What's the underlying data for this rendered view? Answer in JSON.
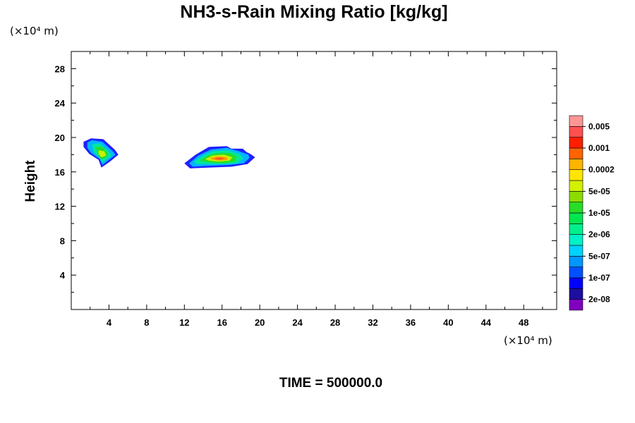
{
  "chart_data": {
    "type": "heatmap",
    "title": "NH3-s-Rain Mixing Ratio [kg/kg]",
    "ylabel": "Height",
    "x_unit": "(×10⁴ m)",
    "y_unit": "(×10⁴ m)",
    "xlim": [
      0,
      51.5
    ],
    "ylim": [
      0,
      30
    ],
    "x_ticks": [
      4,
      8,
      12,
      16,
      20,
      24,
      28,
      32,
      36,
      40,
      44,
      48
    ],
    "y_ticks": [
      4,
      8,
      12,
      16,
      20,
      24,
      28
    ],
    "colorbar": {
      "colors": [
        "#7f00bf",
        "#1c0fa0",
        "#0000ff",
        "#0050ff",
        "#0096ff",
        "#00d2ff",
        "#00f0c8",
        "#00f08c",
        "#00e650",
        "#28dc28",
        "#8cdc00",
        "#d2f000",
        "#ffe600",
        "#ffb400",
        "#ff6400",
        "#ff1e00",
        "#ff5050",
        "#ff9696"
      ],
      "labels": [
        "2e-08",
        "1e-07",
        "5e-07",
        "2e-06",
        "1e-05",
        "5e-05",
        "0.0002",
        "0.001",
        "0.005"
      ]
    },
    "features": [
      {
        "levels": [
          [
            [
              1.3,
              19.5
            ],
            [
              2.1,
              19.9
            ],
            [
              3.4,
              19.8
            ],
            [
              4.6,
              18.6
            ],
            [
              5.0,
              18.0
            ],
            [
              4.1,
              17.2
            ],
            [
              3.2,
              16.5
            ],
            [
              2.9,
              17.4
            ],
            [
              1.9,
              18.1
            ],
            [
              1.3,
              18.9
            ]
          ],
          [
            [
              1.7,
              19.4
            ],
            [
              2.2,
              19.7
            ],
            [
              3.3,
              19.5
            ],
            [
              4.4,
              18.4
            ],
            [
              4.7,
              18.0
            ],
            [
              3.9,
              17.3
            ],
            [
              3.3,
              16.8
            ],
            [
              3.0,
              17.5
            ],
            [
              2.1,
              18.2
            ],
            [
              1.7,
              18.8
            ]
          ],
          [
            [
              2.2,
              19.2
            ],
            [
              3.0,
              19.3
            ],
            [
              3.9,
              18.5
            ],
            [
              4.3,
              17.9
            ],
            [
              3.7,
              17.4
            ],
            [
              3.3,
              17.1
            ],
            [
              3.0,
              17.7
            ],
            [
              2.4,
              18.3
            ]
          ],
          [
            [
              2.6,
              18.9
            ],
            [
              3.3,
              18.9
            ],
            [
              3.9,
              18.1
            ],
            [
              3.6,
              17.6
            ],
            [
              3.1,
              17.5
            ],
            [
              2.8,
              18.2
            ]
          ],
          [
            [
              2.9,
              18.5
            ],
            [
              3.5,
              18.4
            ],
            [
              3.7,
              17.9
            ],
            [
              3.2,
              17.7
            ],
            [
              2.9,
              18.1
            ]
          ]
        ]
      },
      {
        "levels": [
          [
            [
              12.0,
              17.0
            ],
            [
              13.2,
              18.0
            ],
            [
              14.6,
              18.9
            ],
            [
              16.5,
              19.0
            ],
            [
              17.0,
              18.7
            ],
            [
              18.2,
              18.7
            ],
            [
              18.6,
              18.3
            ],
            [
              19.0,
              18.1
            ],
            [
              19.5,
              17.7
            ],
            [
              18.7,
              16.9
            ],
            [
              17.0,
              16.6
            ],
            [
              14.5,
              16.5
            ],
            [
              12.6,
              16.4
            ]
          ],
          [
            [
              12.5,
              17.0
            ],
            [
              13.5,
              17.9
            ],
            [
              14.8,
              18.6
            ],
            [
              16.5,
              18.8
            ],
            [
              17.8,
              18.4
            ],
            [
              18.8,
              18.0
            ],
            [
              18.9,
              17.6
            ],
            [
              18.3,
              17.0
            ],
            [
              16.8,
              16.8
            ],
            [
              14.5,
              16.7
            ],
            [
              12.9,
              16.6
            ]
          ],
          [
            [
              13.0,
              17.2
            ],
            [
              14.0,
              17.9
            ],
            [
              15.0,
              18.4
            ],
            [
              16.6,
              18.5
            ],
            [
              17.8,
              18.1
            ],
            [
              18.3,
              17.6
            ],
            [
              17.6,
              17.0
            ],
            [
              16.2,
              16.9
            ],
            [
              14.2,
              16.9
            ],
            [
              13.3,
              16.9
            ]
          ],
          [
            [
              13.6,
              17.3
            ],
            [
              14.5,
              17.9
            ],
            [
              15.5,
              18.2
            ],
            [
              16.8,
              18.2
            ],
            [
              17.6,
              17.8
            ],
            [
              17.4,
              17.2
            ],
            [
              16.2,
              17.0
            ],
            [
              14.6,
              17.1
            ]
          ],
          [
            [
              14.2,
              17.5
            ],
            [
              15.0,
              17.9
            ],
            [
              16.2,
              18.0
            ],
            [
              17.1,
              17.7
            ],
            [
              16.8,
              17.3
            ],
            [
              15.6,
              17.2
            ],
            [
              14.6,
              17.3
            ]
          ],
          [
            [
              14.7,
              17.6
            ],
            [
              15.5,
              17.8
            ],
            [
              16.5,
              17.7
            ],
            [
              16.6,
              17.4
            ],
            [
              15.7,
              17.3
            ],
            [
              15.0,
              17.4
            ]
          ],
          [
            [
              15.2,
              17.6
            ],
            [
              15.9,
              17.7
            ],
            [
              16.3,
              17.55
            ],
            [
              15.8,
              17.4
            ],
            [
              15.3,
              17.45
            ]
          ]
        ]
      }
    ],
    "time_label": "TIME = 500000.0"
  }
}
